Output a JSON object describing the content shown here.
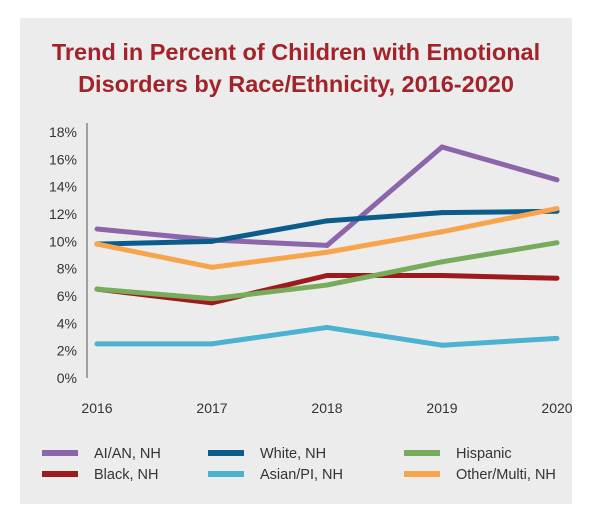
{
  "chart_data": {
    "type": "line",
    "title_lines": [
      "Trend in Percent of Children with Emotional",
      "Disorders by Race/Ethnicity, 2016-2020"
    ],
    "x": [
      "2016",
      "2017",
      "2018",
      "2019",
      "2020"
    ],
    "y_ticks": [
      "0%",
      "2%",
      "4%",
      "6%",
      "8%",
      "10%",
      "12%",
      "14%",
      "16%",
      "18%"
    ],
    "ylim": [
      0,
      18
    ],
    "grid": false,
    "legend_position": "bottom",
    "series": [
      {
        "name": "AI/AN, NH",
        "color": "#8c65aa",
        "values": [
          10.9,
          10.1,
          9.7,
          16.9,
          14.5
        ]
      },
      {
        "name": "Black, NH",
        "color": "#9b1b1e",
        "values": [
          6.5,
          5.5,
          7.5,
          7.5,
          7.3
        ]
      },
      {
        "name": "White, NH",
        "color": "#0b5c8a",
        "values": [
          9.8,
          10.0,
          11.5,
          12.1,
          12.2
        ]
      },
      {
        "name": "Asian/PI, NH",
        "color": "#4bb3d0",
        "values": [
          2.5,
          2.5,
          3.7,
          2.4,
          2.9
        ]
      },
      {
        "name": "Hispanic",
        "color": "#79ab5c",
        "values": [
          6.5,
          5.8,
          6.8,
          8.5,
          9.9
        ]
      },
      {
        "name": "Other/Multi, NH",
        "color": "#f7a44d",
        "values": [
          9.8,
          8.1,
          9.2,
          10.7,
          12.4
        ]
      }
    ]
  }
}
